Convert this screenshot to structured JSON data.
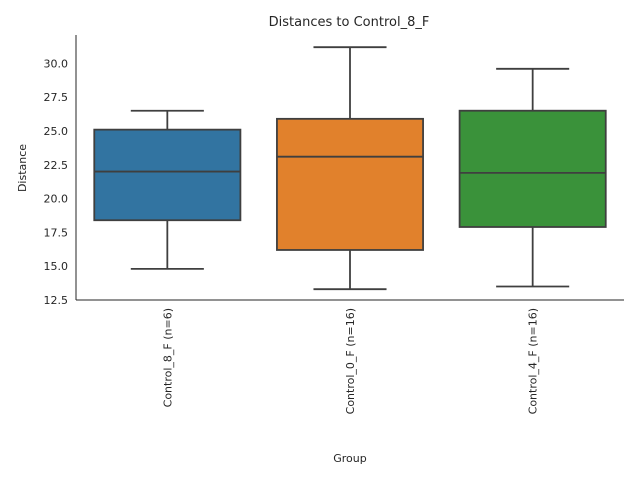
{
  "chart_data": {
    "type": "box",
    "title": "Distances to Control_8_F",
    "xlabel": "Group",
    "ylabel": "Distance",
    "ylim": [
      12.5,
      32.1
    ],
    "yticks": [
      "12.5",
      "15.0",
      "17.5",
      "20.0",
      "22.5",
      "25.0",
      "27.5",
      "30.0"
    ],
    "grid": false,
    "categories": [
      "Control_8_F (n=6)",
      "Control_0_F (n=16)",
      "Control_4_F (n=16)"
    ],
    "boxes": [
      {
        "whisker_low": 14.8,
        "q1": 18.4,
        "median": 22.0,
        "q3": 25.1,
        "whisker_high": 26.5,
        "color": "#3274a1"
      },
      {
        "whisker_low": 13.3,
        "q1": 16.2,
        "median": 23.1,
        "q3": 25.9,
        "whisker_high": 31.2,
        "color": "#e1812c"
      },
      {
        "whisker_low": 13.5,
        "q1": 17.9,
        "median": 21.9,
        "q3": 26.5,
        "whisker_high": 29.6,
        "color": "#3a923a"
      }
    ]
  }
}
